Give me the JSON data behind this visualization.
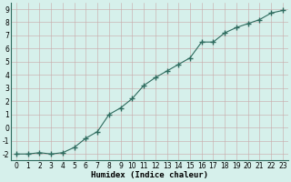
{
  "x": [
    0,
    1,
    2,
    3,
    4,
    5,
    6,
    7,
    8,
    9,
    10,
    11,
    12,
    13,
    14,
    15,
    16,
    17,
    18,
    19,
    20,
    21,
    22,
    23
  ],
  "y": [
    -2.0,
    -2.0,
    -1.9,
    -2.0,
    -1.9,
    -1.5,
    -0.8,
    -0.3,
    1.0,
    1.5,
    2.2,
    3.2,
    3.8,
    4.3,
    4.8,
    5.3,
    6.5,
    6.5,
    7.2,
    7.6,
    7.9,
    8.2,
    8.7,
    8.9
  ],
  "line_color": "#2e6b5e",
  "marker": "+",
  "marker_size": 4,
  "marker_linewidth": 1.0,
  "bg_color": "#d6f0eb",
  "grid_color": "#c8a8a8",
  "xlabel": "Humidex (Indice chaleur)",
  "xlim": [
    -0.5,
    23.5
  ],
  "ylim": [
    -2.5,
    9.5
  ],
  "yticks": [
    -2,
    -1,
    0,
    1,
    2,
    3,
    4,
    5,
    6,
    7,
    8,
    9
  ],
  "xticks": [
    0,
    1,
    2,
    3,
    4,
    5,
    6,
    7,
    8,
    9,
    10,
    11,
    12,
    13,
    14,
    15,
    16,
    17,
    18,
    19,
    20,
    21,
    22,
    23
  ],
  "label_fontsize": 6.5,
  "tick_fontsize": 5.5,
  "line_width": 0.8
}
